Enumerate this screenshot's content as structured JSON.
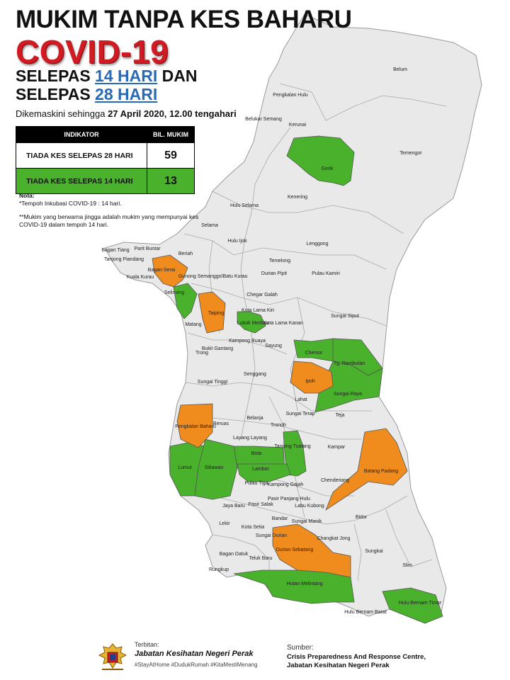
{
  "header": {
    "title_line1": "MUKIM TANPA KES BAHARU",
    "title_line2": "COVID-19",
    "sub1_pre": "SELEPAS ",
    "sub1_hl": "14 HARI",
    "sub1_post": " DAN",
    "sub2_pre": "SELEPAS ",
    "sub2_hl": "28 HARI",
    "updated_prefix": "Dikemaskini sehingga ",
    "updated_value": "27 April 2020, 12.00 tengahari"
  },
  "table": {
    "col1": "INDIKATOR",
    "col2": "BIL. MUKIM",
    "rows": [
      {
        "label": "TIADA KES SELEPAS 28 HARI",
        "value": "59"
      },
      {
        "label": "TIADA KES SELEPAS 14 HARI",
        "value": "13"
      }
    ]
  },
  "notes": {
    "heading": "Nota:",
    "line1": "*Tempoh Inkubasi COVID-19 : 14 hari.",
    "line2": "**Mukim yang berwarna jingga adalah mukim yang mempunyai kes COVID-19 dalam tempoh 14 hari."
  },
  "colors": {
    "green": "#49b12b",
    "orange": "#f08c1e",
    "grey": "#e9e9e9",
    "title_red": "#d01b22",
    "highlight_blue": "#2a6ab5"
  },
  "legend_status": {
    "green": "Tiada kes selepas 14 hari",
    "orange": "Kes COVID-19 dalam tempoh 14 hari",
    "grey": "Tiada kes selepas 28 hari"
  },
  "map_labels": [
    "Belum",
    "Pengkalan Hulu",
    "Belukar Semang",
    "Kerunai",
    "Temengor",
    "Gerik",
    "Kenering",
    "Hulu Selama",
    "Selama",
    "Hulu Ijok",
    "Lenggong",
    "Bagan Tiang",
    "Parit Buntar",
    "Tanjong Piandang",
    "Beriah",
    "Bagan Serai",
    "Kuala Kurau",
    "Gunong Semanggol",
    "Batu Kurau",
    "Temelong",
    "Durian Pipit",
    "Pulau Kamiri",
    "Selinsing",
    "Chegar Galah",
    "Taiping",
    "Lubok Merbau",
    "Kota Lama Kiri",
    "Kota Lama Kanan",
    "Sungai Siput",
    "Matang",
    "Bukit Gantang",
    "Trong",
    "Kampong Buaya",
    "Sayung",
    "Chemor",
    "Tg. Rambutan",
    "Ipoh",
    "Senggang",
    "Sungai Tinggi",
    "Sungai Raya",
    "Lahat",
    "Sungai Terap",
    "Teja",
    "Beruas",
    "Belanja",
    "Tronoh",
    "Pengkalan Baharu",
    "Layang Layang",
    "Tanjong Tualang",
    "Kampar",
    "Bota",
    "Lumut",
    "Sitiawan",
    "Lambor",
    "Batang Padang",
    "Chenderiang",
    "Pulau Tiga",
    "Kampong Gajah",
    "Pasir Panjang Hulu",
    "Jaya Baru",
    "Pasir Salak",
    "Labu Kubong",
    "Bidor",
    "Lekir",
    "Bandar",
    "Sungai Manik",
    "Kota Setia",
    "Sungai Durian",
    "Changkat Jong",
    "Durian Sebatang",
    "Sungkai",
    "Bagan Datuk",
    "Teluk Baru",
    "Rungkup",
    "Slim",
    "Hutan Melintang",
    "Hulu Bernam Timor",
    "Hulu Bernam Barat"
  ],
  "footer": {
    "published_label": "Terbitan:",
    "department": "Jabatan Kesihatan Negeri Perak",
    "hashtags": "#StayAtHome #DudukRumah #KitaMestiMenang",
    "source_label": "Sumber:",
    "source_line1": "Crisis Preparedness And Response Centre,",
    "source_line2": "Jabatan Kesihatan Negeri Perak"
  }
}
